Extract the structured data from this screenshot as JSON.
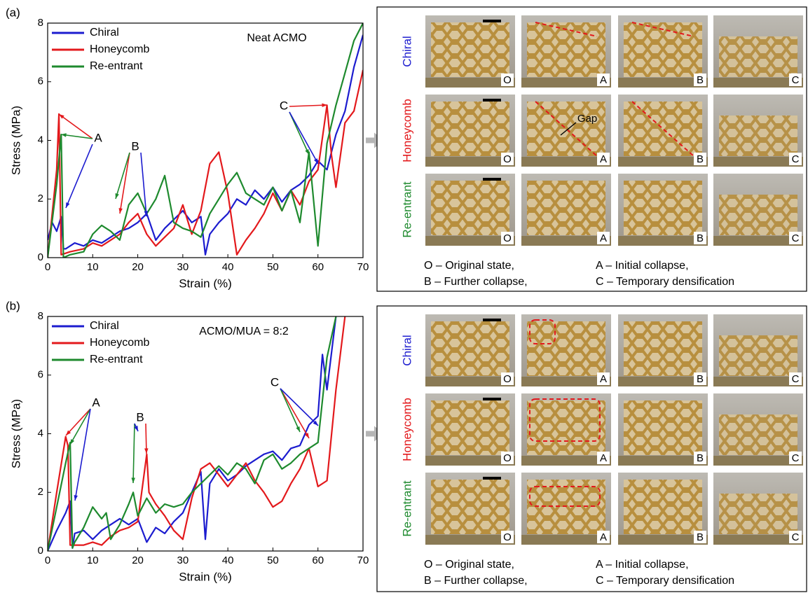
{
  "chart_data": [
    {
      "type": "line",
      "panel_label": "(a)",
      "note": "Neat ACMO",
      "xlabel": "Strain (%)",
      "ylabel": "Stress (MPa)",
      "xlim": [
        0,
        70
      ],
      "ylim": [
        0,
        8
      ],
      "xticks": [
        0,
        10,
        20,
        30,
        40,
        50,
        60,
        70
      ],
      "yticks": [
        0,
        2,
        4,
        6,
        8
      ],
      "legend": "upper left",
      "annotations": [
        "A",
        "B",
        "C"
      ],
      "series": [
        {
          "name": "Chiral",
          "color": "#1c1ccf",
          "x": [
            0,
            1,
            2,
            3,
            3.5,
            4,
            6,
            8,
            10,
            12,
            14,
            16,
            18,
            20,
            22,
            24,
            26,
            28,
            30,
            32,
            34,
            35,
            36,
            38,
            40,
            42,
            44,
            46,
            48,
            50,
            52,
            54,
            56,
            58,
            60,
            62,
            64,
            66,
            68,
            70
          ],
          "values": [
            0.6,
            1.2,
            0.9,
            1.4,
            0.3,
            0.3,
            0.5,
            0.4,
            0.6,
            0.5,
            0.7,
            0.9,
            1.0,
            1.2,
            1.5,
            0.6,
            1.0,
            1.3,
            1.6,
            1.2,
            1.4,
            0.1,
            0.8,
            1.2,
            1.5,
            2.0,
            1.8,
            2.3,
            2.0,
            2.4,
            1.9,
            2.3,
            2.5,
            2.8,
            3.3,
            3.0,
            4.2,
            5.0,
            6.5,
            7.6
          ]
        },
        {
          "name": "Honeycomb",
          "color": "#e3191c",
          "x": [
            0,
            2,
            2.5,
            3,
            5,
            8,
            10,
            12,
            14,
            16,
            18,
            20,
            22,
            24,
            26,
            28,
            30,
            32,
            34,
            36,
            38,
            40,
            42,
            44,
            46,
            48,
            50,
            52,
            54,
            56,
            58,
            60,
            62,
            63,
            64,
            66,
            68,
            70
          ],
          "values": [
            0,
            3,
            4.9,
            0.1,
            0.2,
            0.3,
            0.5,
            0.4,
            0.6,
            0.8,
            1.2,
            1.5,
            0.8,
            0.4,
            0.7,
            1.0,
            1.8,
            0.8,
            1.6,
            3.2,
            3.6,
            2.2,
            0.1,
            0.6,
            1.0,
            1.5,
            2.2,
            1.6,
            2.3,
            1.8,
            2.6,
            3.0,
            5.2,
            3.5,
            2.4,
            4.6,
            5.0,
            6.4
          ]
        },
        {
          "name": "Re-entrant",
          "color": "#1e8a2e",
          "x": [
            0,
            2,
            3,
            3.5,
            5,
            8,
            10,
            12,
            14,
            16,
            18,
            20,
            22,
            24,
            26,
            28,
            30,
            32,
            34,
            36,
            38,
            40,
            42,
            44,
            46,
            48,
            50,
            52,
            54,
            56,
            58,
            60,
            62,
            64,
            66,
            68,
            70
          ],
          "values": [
            0,
            2.5,
            4.2,
            0,
            0.1,
            0.2,
            0.8,
            1.1,
            0.9,
            0.6,
            1.8,
            2.2,
            1.5,
            2.0,
            2.8,
            1.2,
            1.0,
            0.9,
            0.7,
            1.5,
            2.0,
            2.5,
            2.9,
            2.2,
            2.0,
            1.8,
            2.4,
            1.6,
            2.3,
            1.2,
            3.6,
            0.4,
            3.9,
            5.2,
            6.3,
            7.4,
            8
          ]
        }
      ]
    },
    {
      "type": "line",
      "panel_label": "(b)",
      "note": "ACMO/MUA = 8:2",
      "xlabel": "Strain (%)",
      "ylabel": "Stress (MPa)",
      "xlim": [
        0,
        70
      ],
      "ylim": [
        0,
        8
      ],
      "xticks": [
        0,
        10,
        20,
        30,
        40,
        50,
        60,
        70
      ],
      "yticks": [
        0,
        2,
        4,
        6,
        8
      ],
      "legend": "upper left",
      "annotations": [
        "A",
        "B",
        "C"
      ],
      "series": [
        {
          "name": "Chiral",
          "color": "#1c1ccf",
          "x": [
            0,
            2,
            4,
            5,
            5.5,
            6,
            8,
            10,
            12,
            14,
            16,
            18,
            20,
            22,
            24,
            26,
            28,
            30,
            32,
            34,
            35,
            36,
            38,
            40,
            42,
            44,
            46,
            48,
            50,
            52,
            54,
            56,
            58,
            60,
            61,
            62,
            64
          ],
          "values": [
            0,
            0.7,
            1.3,
            1.7,
            0.1,
            0.6,
            0.7,
            0.4,
            0.7,
            0.9,
            1.1,
            0.9,
            1.1,
            0.3,
            0.8,
            0.6,
            1.0,
            1.3,
            2.0,
            2.7,
            0.4,
            2.3,
            2.8,
            2.4,
            2.6,
            2.9,
            3.1,
            3.3,
            3.4,
            3.1,
            3.5,
            3.6,
            4.3,
            4.6,
            6.7,
            5.5,
            8
          ]
        },
        {
          "name": "Honeycomb",
          "color": "#e3191c",
          "x": [
            0,
            2,
            4,
            4.5,
            5,
            8,
            10,
            12,
            14,
            16,
            18,
            20,
            22,
            22.5,
            24,
            26,
            28,
            30,
            32,
            34,
            36,
            38,
            40,
            42,
            44,
            46,
            48,
            50,
            52,
            54,
            56,
            58,
            60,
            62,
            64,
            66
          ],
          "values": [
            0,
            2.0,
            3.9,
            3.6,
            0.2,
            0.2,
            0.3,
            0.2,
            0.5,
            0.7,
            0.8,
            1.0,
            3.3,
            2.0,
            1.6,
            1.2,
            0.7,
            0.4,
            1.8,
            2.8,
            3.0,
            2.6,
            2.2,
            2.6,
            3.0,
            2.4,
            2.0,
            1.5,
            1.7,
            2.3,
            2.8,
            3.5,
            2.2,
            2.4,
            5.5,
            8
          ]
        },
        {
          "name": "Re-entrant",
          "color": "#1e8a2e",
          "x": [
            0,
            2,
            4,
            5,
            5.5,
            6,
            8,
            10,
            12,
            13,
            14,
            16,
            18,
            19,
            20,
            22,
            24,
            26,
            28,
            30,
            32,
            34,
            36,
            38,
            40,
            42,
            44,
            46,
            48,
            50,
            52,
            54,
            56,
            58,
            60,
            62,
            64
          ],
          "values": [
            0,
            1.5,
            3.0,
            3.7,
            0.1,
            0.3,
            0.8,
            1.5,
            1.1,
            1.3,
            0.4,
            0.9,
            1.6,
            2.0,
            1.2,
            1.8,
            1.3,
            1.6,
            1.5,
            1.6,
            2.0,
            2.3,
            2.6,
            2.9,
            2.6,
            3.0,
            2.8,
            2.3,
            3.1,
            3.3,
            2.8,
            3.0,
            3.3,
            3.5,
            3.7,
            6.6,
            8
          ]
        }
      ]
    }
  ],
  "photo_panels": [
    {
      "rows": [
        "Chiral",
        "Honeycomb",
        "Re-entrant"
      ],
      "stages": [
        "O",
        "A",
        "B",
        "C"
      ],
      "callout": "Gap",
      "legend": [
        "O – Original state,",
        "A – Initial collapse,",
        "B – Further collapse,",
        "C – Temporary densification"
      ]
    },
    {
      "rows": [
        "Chiral",
        "Honeycomb",
        "Re-entrant"
      ],
      "stages": [
        "O",
        "A",
        "B",
        "C"
      ],
      "legend": [
        "O – Original state,",
        "A – Initial collapse,",
        "B – Further collapse,",
        "C – Temporary densification"
      ]
    }
  ]
}
